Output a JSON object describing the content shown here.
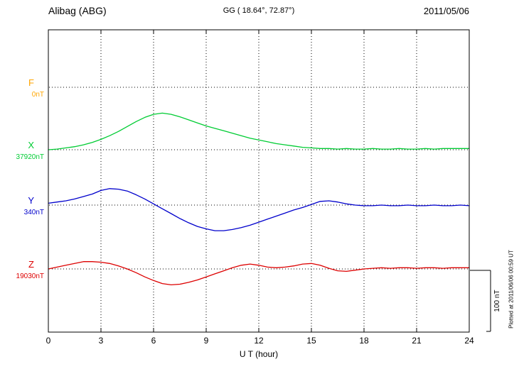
{
  "chart_data": {
    "type": "line",
    "title": "Alibag (ABG)",
    "subtitle": "GG ( 18.64°,  72.87°)",
    "date": "2011/05/06",
    "xlabel": "U T (hour)",
    "x_unit": "hour",
    "x_range": [
      0,
      24
    ],
    "x_tick_labels": [
      "0",
      "3",
      "6",
      "9",
      "12",
      "15",
      "18",
      "21",
      "24"
    ],
    "sample_interval_hours": 0.5,
    "value_unit": "nT",
    "grid": "dotted",
    "scale_bar": {
      "label": "100 nT",
      "nT": 100
    },
    "plotted_note": "Plotted at 2011/06/06 00:59 UT",
    "series": [
      {
        "name": "F",
        "color": "#ffa500",
        "baseline_label": "0nT",
        "baseline_nT": 0,
        "values": []
      },
      {
        "name": "X",
        "color": "#00cc33",
        "baseline_label": "37920nT",
        "baseline_nT": 37920,
        "values": [
          0,
          1,
          3,
          5,
          8,
          12,
          17,
          23,
          30,
          38,
          46,
          53,
          58,
          60,
          58,
          54,
          49,
          44,
          39,
          35,
          31,
          27,
          23,
          19,
          16,
          13,
          10,
          8,
          6,
          4,
          3,
          2,
          2,
          1,
          2,
          1,
          1,
          2,
          1,
          1,
          2,
          1,
          1,
          2,
          1,
          2,
          2,
          2,
          2
        ]
      },
      {
        "name": "Y",
        "color": "#0000cc",
        "baseline_label": "340nT",
        "baseline_nT": 340,
        "values": [
          3,
          5,
          7,
          10,
          14,
          18,
          24,
          27,
          26,
          23,
          17,
          10,
          2,
          -6,
          -14,
          -22,
          -29,
          -35,
          -39,
          -42,
          -42,
          -40,
          -37,
          -33,
          -28,
          -23,
          -18,
          -13,
          -8,
          -4,
          1,
          6,
          7,
          5,
          2,
          0,
          -1,
          -1,
          0,
          -1,
          -1,
          0,
          -1,
          -1,
          0,
          -1,
          -1,
          0,
          -1
        ]
      },
      {
        "name": "Z",
        "color": "#dd0000",
        "baseline_label": "19030nT",
        "baseline_nT": 19030,
        "values": [
          0,
          3,
          6,
          9,
          12,
          12,
          11,
          9,
          5,
          0,
          -6,
          -13,
          -19,
          -24,
          -26,
          -25,
          -22,
          -18,
          -13,
          -8,
          -3,
          2,
          6,
          8,
          6,
          3,
          2,
          3,
          5,
          8,
          9,
          6,
          1,
          -3,
          -4,
          -2,
          0,
          1,
          2,
          1,
          2,
          2,
          1,
          2,
          2,
          1,
          2,
          2,
          2
        ]
      }
    ]
  }
}
